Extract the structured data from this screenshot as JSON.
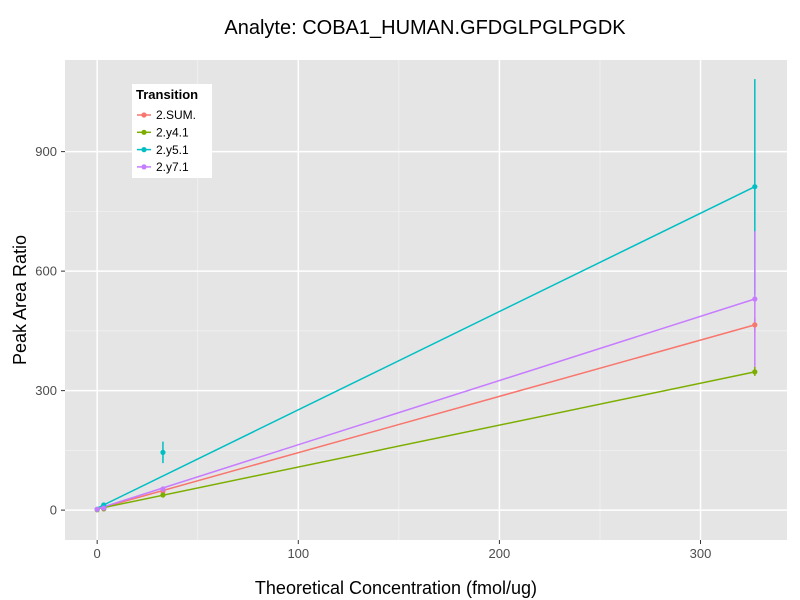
{
  "chart_data": {
    "type": "line",
    "title": "Analyte: COBA1_HUMAN.GFDGLPGLPGDK",
    "xlabel": "Theoretical Concentration (fmol/ug)",
    "ylabel": "Peak Area Ratio",
    "xlim": [
      -16,
      343
    ],
    "ylim": [
      -75,
      1130
    ],
    "x_ticks": [
      0,
      100,
      200,
      300
    ],
    "y_ticks": [
      0,
      300,
      600,
      900
    ],
    "grid": true,
    "legend": {
      "title": "Transition",
      "position": "top-left"
    },
    "series": [
      {
        "name": "2.SUM.",
        "color": "#F8766D",
        "fit": [
          [
            0,
            3
          ],
          [
            327,
            465
          ]
        ],
        "points": [
          {
            "x": 0,
            "y": 2,
            "err": [
              0,
              4
            ]
          },
          {
            "x": 3.27,
            "y": 4,
            "err": [
              2,
              6
            ]
          },
          {
            "x": 32.7,
            "y": 47,
            "err": [
              42,
              52
            ]
          },
          {
            "x": 327,
            "y": 465,
            "err": [
              448,
              482
            ]
          }
        ]
      },
      {
        "name": "2.y4.1",
        "color": "#7CAE00",
        "fit": [
          [
            0,
            3
          ],
          [
            327,
            347
          ]
        ],
        "points": [
          {
            "x": 0,
            "y": 1,
            "err": [
              0,
              3
            ]
          },
          {
            "x": 3.27,
            "y": 3,
            "err": [
              2,
              5
            ]
          },
          {
            "x": 32.7,
            "y": 38,
            "err": [
              34,
              42
            ]
          },
          {
            "x": 327,
            "y": 347,
            "err": [
              337,
              360
            ]
          }
        ]
      },
      {
        "name": "2.y5.1",
        "color": "#00BFC4",
        "fit": [
          [
            0,
            5
          ],
          [
            327,
            812
          ]
        ],
        "points": [
          {
            "x": 0,
            "y": 2,
            "err": [
              0,
              5
            ]
          },
          {
            "x": 3.27,
            "y": 13,
            "err": [
              9,
              17
            ]
          },
          {
            "x": 32.7,
            "y": 145,
            "err": [
              118,
              172
            ]
          },
          {
            "x": 327,
            "y": 812,
            "err": [
              540,
              1082
            ]
          }
        ]
      },
      {
        "name": "2.y7.1",
        "color": "#C77CFF",
        "fit": [
          [
            0,
            3
          ],
          [
            327,
            530
          ]
        ],
        "points": [
          {
            "x": 0,
            "y": 2,
            "err": [
              0,
              4
            ]
          },
          {
            "x": 3.27,
            "y": 5,
            "err": [
              3,
              7
            ]
          },
          {
            "x": 32.7,
            "y": 53,
            "err": [
              48,
              58
            ]
          },
          {
            "x": 327,
            "y": 530,
            "err": [
              360,
              700
            ]
          }
        ]
      }
    ]
  }
}
